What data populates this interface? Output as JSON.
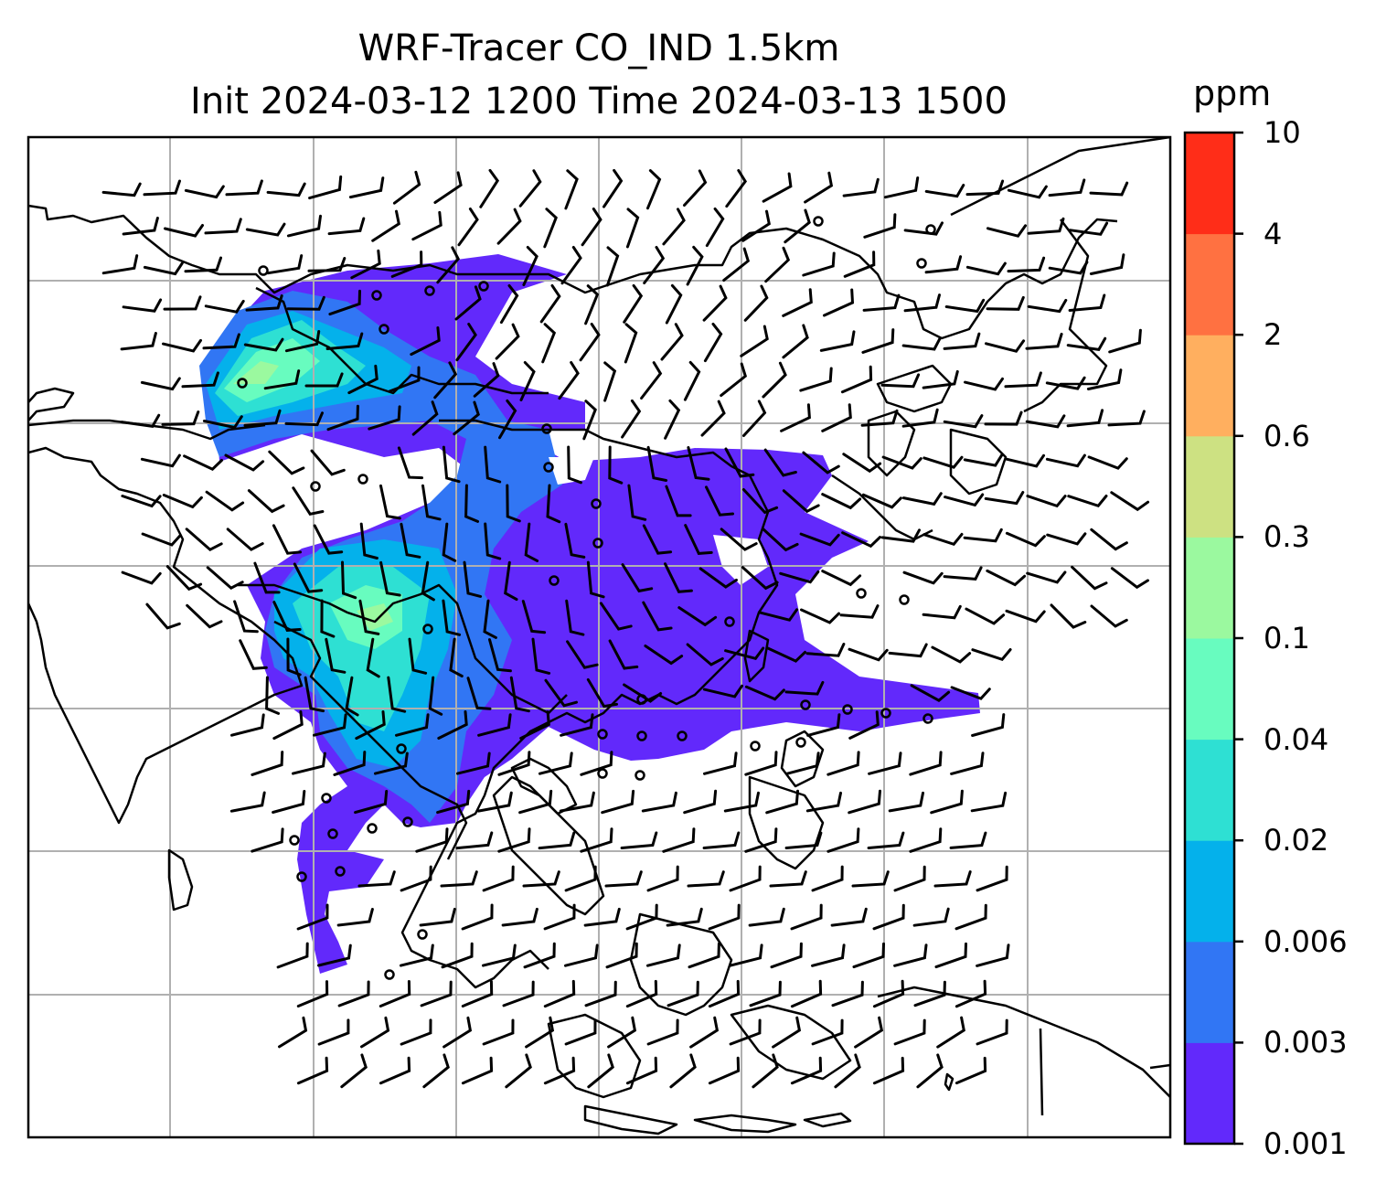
{
  "title_line1": "WRF-Tracer CO_IND 1.5km",
  "title_line2": "Init 2024-03-12 1200 Time 2024-03-13 1500",
  "colorbar": {
    "unit": "ppm",
    "tick_labels": [
      "0.001",
      "0.003",
      "0.006",
      "0.02",
      "0.04",
      "0.1",
      "0.3",
      "0.6",
      "2",
      "4",
      "10"
    ],
    "colors": [
      "#6229fb",
      "#3176f4",
      "#04b1eb",
      "#2ee0d3",
      "#68fcbf",
      "#9bf99f",
      "#cde182",
      "#ffaf5f",
      "#ff7141",
      "#ff2d18"
    ]
  },
  "map": {
    "plume_colors": {
      "level1": "#6229fb",
      "level2": "#3176f4",
      "level3": "#04b1eb",
      "level4": "#2ee0d3",
      "level5": "#68fcbf",
      "level6": "#9bf99f"
    },
    "coastline_color": "#000000",
    "grid_color": "#b0b0b0",
    "wind_barbs": "black"
  }
}
